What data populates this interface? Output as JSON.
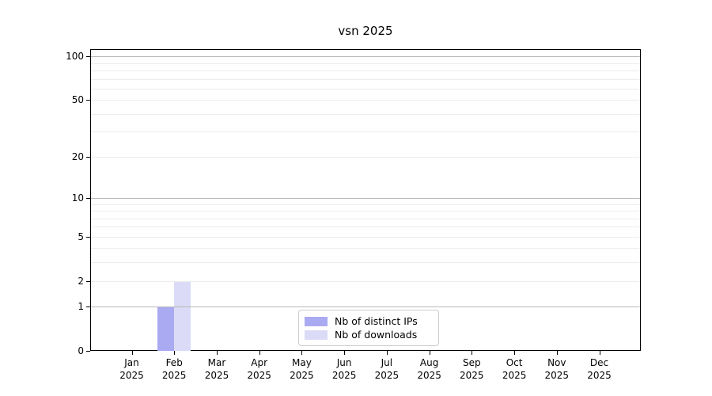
{
  "title": "vsn 2025",
  "chart_data": {
    "type": "bar",
    "title": "vsn 2025",
    "categories": [
      "Jan 2025",
      "Feb 2025",
      "Mar 2025",
      "Apr 2025",
      "May 2025",
      "Jun 2025",
      "Jul 2025",
      "Aug 2025",
      "Sep 2025",
      "Oct 2025",
      "Nov 2025",
      "Dec 2025"
    ],
    "series": [
      {
        "name": "Nb of distinct IPs",
        "color": "#aaaaf2",
        "values": [
          0,
          1,
          0,
          0,
          0,
          0,
          0,
          0,
          0,
          0,
          0,
          0
        ]
      },
      {
        "name": "Nb of downloads",
        "color": "#dbdbf8",
        "values": [
          0,
          2,
          0,
          0,
          0,
          0,
          0,
          0,
          0,
          0,
          0,
          0
        ]
      }
    ],
    "xlabel": "",
    "ylabel": "",
    "yscale": "log1p",
    "ylim": [
      0,
      110
    ],
    "yticks": [
      0,
      1,
      2,
      5,
      10,
      20,
      50,
      100
    ],
    "minor_gridline_values": [
      2,
      3,
      4,
      5,
      6,
      7,
      8,
      9,
      20,
      30,
      40,
      50,
      60,
      70,
      80,
      90
    ],
    "decade_gridline_values": [
      1,
      10,
      100
    ],
    "grid": "horizontal",
    "legend_position": "bottom-center"
  },
  "colors": {
    "minor_grid": "#ececec",
    "decade_grid": "#b8b8b8",
    "axis": "#000000",
    "legend_border": "#cccccc",
    "background": "#ffffff"
  }
}
